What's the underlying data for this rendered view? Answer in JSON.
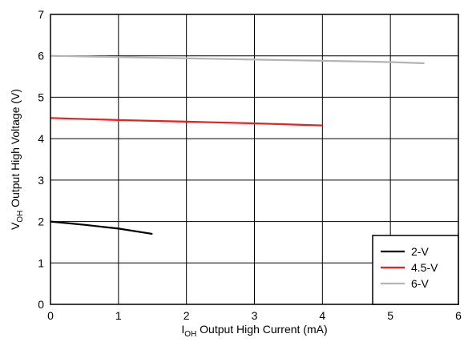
{
  "chart_data": {
    "type": "line",
    "title": "",
    "xlabel": {
      "main": "I",
      "sub": "OH",
      "rest": " Output High Current (mA)"
    },
    "ylabel": {
      "main": "V",
      "sub": "OH",
      "rest": " Output High Voltage (V)"
    },
    "xlim": [
      0,
      6
    ],
    "ylim": [
      0,
      7
    ],
    "x_ticks": [
      "0",
      "1",
      "2",
      "3",
      "4",
      "5",
      "6"
    ],
    "y_ticks": [
      "0",
      "1",
      "2",
      "3",
      "4",
      "5",
      "6",
      "7"
    ],
    "grid": true,
    "legend_position": "bottom-right",
    "series": [
      {
        "name": "2-V",
        "color": "#000000",
        "x": [
          0,
          0.5,
          1.0,
          1.5
        ],
        "y": [
          2.0,
          1.92,
          1.83,
          1.7
        ]
      },
      {
        "name": "4.5-V",
        "color": "#e8201e",
        "x": [
          0,
          1,
          2,
          3,
          4
        ],
        "y": [
          4.5,
          4.45,
          4.41,
          4.37,
          4.32
        ]
      },
      {
        "name": "6-V",
        "color": "#b4b4b4",
        "x": [
          0,
          1,
          2,
          3,
          4,
          5,
          5.5
        ],
        "y": [
          6.0,
          5.97,
          5.94,
          5.91,
          5.88,
          5.85,
          5.82
        ]
      }
    ]
  }
}
